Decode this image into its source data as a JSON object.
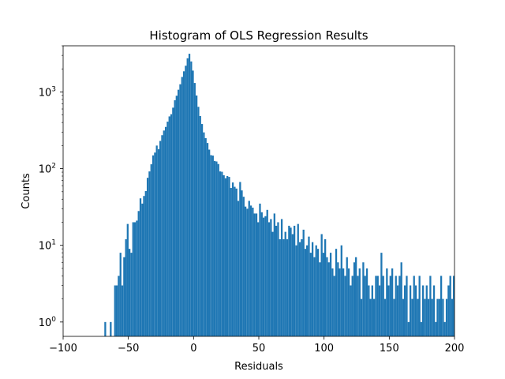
{
  "chart_data": {
    "type": "bar",
    "title": "Histogram of OLS Regression Results",
    "xlabel": "Residuals",
    "ylabel": "Counts",
    "xlim": [
      -100,
      200
    ],
    "ylim": [
      0.65,
      4000
    ],
    "yscale": "log",
    "grid": false,
    "bar_color": "#1f77b4",
    "bin_width": 1.38,
    "x_ticks": [
      {
        "value": -100,
        "label": "−100"
      },
      {
        "value": -50,
        "label": "−50"
      },
      {
        "value": 0,
        "label": "0"
      },
      {
        "value": 50,
        "label": "50"
      },
      {
        "value": 100,
        "label": "100"
      },
      {
        "value": 150,
        "label": "150"
      },
      {
        "value": 200,
        "label": "200"
      }
    ],
    "y_ticks": [
      {
        "value": 1,
        "base": "10",
        "exp": "0"
      },
      {
        "value": 10,
        "base": "10",
        "exp": "1"
      },
      {
        "value": 100,
        "base": "10",
        "exp": "2"
      },
      {
        "value": 1000,
        "base": "10",
        "exp": "3"
      }
    ],
    "bins": [
      [
        -68.4,
        1
      ],
      [
        -64.2,
        1
      ],
      [
        -60.9,
        3
      ],
      [
        -59.5,
        3
      ],
      [
        -58.1,
        4
      ],
      [
        -56.7,
        8
      ],
      [
        -55.3,
        3
      ],
      [
        -53.9,
        7
      ],
      [
        -52.5,
        12
      ],
      [
        -51.2,
        19
      ],
      [
        -49.8,
        9
      ],
      [
        -48.4,
        8
      ],
      [
        -47.0,
        20
      ],
      [
        -45.6,
        20
      ],
      [
        -44.2,
        21
      ],
      [
        -42.8,
        28
      ],
      [
        -41.4,
        41
      ],
      [
        -40.0,
        35
      ],
      [
        -38.7,
        44
      ],
      [
        -37.3,
        51
      ],
      [
        -35.9,
        76
      ],
      [
        -34.5,
        92
      ],
      [
        -33.1,
        114
      ],
      [
        -31.7,
        149
      ],
      [
        -30.3,
        162
      ],
      [
        -28.9,
        200
      ],
      [
        -27.5,
        179
      ],
      [
        -26.2,
        230
      ],
      [
        -24.8,
        273
      ],
      [
        -23.4,
        314
      ],
      [
        -22.0,
        350
      ],
      [
        -20.6,
        410
      ],
      [
        -19.2,
        480
      ],
      [
        -17.8,
        513
      ],
      [
        -16.4,
        624
      ],
      [
        -15.0,
        780
      ],
      [
        -13.7,
        893
      ],
      [
        -12.3,
        1070
      ],
      [
        -10.9,
        1260
      ],
      [
        -9.5,
        1570
      ],
      [
        -8.1,
        1860
      ],
      [
        -6.7,
        2200
      ],
      [
        -5.3,
        2750
      ],
      [
        -3.9,
        3150
      ],
      [
        -2.5,
        2500
      ],
      [
        -1.2,
        1900
      ],
      [
        0.2,
        1310
      ],
      [
        1.6,
        900
      ],
      [
        3.0,
        640
      ],
      [
        4.4,
        485
      ],
      [
        5.8,
        382
      ],
      [
        7.2,
        297
      ],
      [
        8.6,
        250
      ],
      [
        10.0,
        216
      ],
      [
        11.3,
        177
      ],
      [
        12.7,
        150
      ],
      [
        14.1,
        148
      ],
      [
        15.5,
        126
      ],
      [
        16.9,
        124
      ],
      [
        18.3,
        115
      ],
      [
        19.7,
        92
      ],
      [
        21.1,
        91
      ],
      [
        22.5,
        82
      ],
      [
        23.8,
        75
      ],
      [
        25.2,
        80
      ],
      [
        26.6,
        78
      ],
      [
        28.0,
        56
      ],
      [
        29.4,
        66
      ],
      [
        30.8,
        58
      ],
      [
        32.2,
        55
      ],
      [
        33.6,
        38
      ],
      [
        35.0,
        67
      ],
      [
        36.3,
        52
      ],
      [
        37.7,
        43
      ],
      [
        39.1,
        32
      ],
      [
        40.5,
        30
      ],
      [
        41.9,
        38
      ],
      [
        43.3,
        33
      ],
      [
        44.7,
        31
      ],
      [
        46.1,
        26
      ],
      [
        47.5,
        26
      ],
      [
        48.8,
        20
      ],
      [
        50.2,
        35
      ],
      [
        51.6,
        27
      ],
      [
        53.0,
        23
      ],
      [
        54.4,
        24
      ],
      [
        55.8,
        29
      ],
      [
        57.2,
        20
      ],
      [
        58.6,
        22
      ],
      [
        60.0,
        15
      ],
      [
        61.3,
        26
      ],
      [
        62.7,
        18
      ],
      [
        64.1,
        20
      ],
      [
        65.5,
        12
      ],
      [
        66.9,
        22
      ],
      [
        68.3,
        12
      ],
      [
        69.7,
        15
      ],
      [
        71.1,
        12
      ],
      [
        72.5,
        18
      ],
      [
        73.8,
        17
      ],
      [
        75.2,
        14
      ],
      [
        76.6,
        18
      ],
      [
        78.0,
        10
      ],
      [
        79.4,
        19
      ],
      [
        80.8,
        11
      ],
      [
        82.2,
        12
      ],
      [
        83.6,
        16
      ],
      [
        85.0,
        9
      ],
      [
        86.3,
        10
      ],
      [
        87.7,
        13
      ],
      [
        89.1,
        8
      ],
      [
        90.5,
        11
      ],
      [
        91.9,
        7
      ],
      [
        93.3,
        10
      ],
      [
        94.7,
        9
      ],
      [
        96.1,
        6
      ],
      [
        97.5,
        14
      ],
      [
        98.8,
        8
      ],
      [
        100.2,
        12
      ],
      [
        101.6,
        7
      ],
      [
        103.0,
        6
      ],
      [
        104.4,
        8
      ],
      [
        105.8,
        5
      ],
      [
        107.2,
        4
      ],
      [
        108.6,
        9
      ],
      [
        110.0,
        6
      ],
      [
        111.3,
        5
      ],
      [
        112.7,
        10
      ],
      [
        114.1,
        5
      ],
      [
        115.5,
        4
      ],
      [
        116.9,
        7
      ],
      [
        118.3,
        5
      ],
      [
        119.7,
        3
      ],
      [
        121.1,
        4
      ],
      [
        122.5,
        6
      ],
      [
        123.8,
        7
      ],
      [
        125.2,
        4
      ],
      [
        126.6,
        5
      ],
      [
        128.0,
        2
      ],
      [
        129.4,
        6
      ],
      [
        130.8,
        4
      ],
      [
        132.2,
        5
      ],
      [
        133.6,
        3
      ],
      [
        135.0,
        2
      ],
      [
        136.3,
        3
      ],
      [
        137.7,
        2
      ],
      [
        139.1,
        4
      ],
      [
        140.5,
        4
      ],
      [
        141.9,
        3
      ],
      [
        143.3,
        8
      ],
      [
        144.7,
        4
      ],
      [
        146.1,
        2
      ],
      [
        147.5,
        5
      ],
      [
        148.8,
        3
      ],
      [
        150.2,
        4
      ],
      [
        151.6,
        5
      ],
      [
        153.0,
        2
      ],
      [
        154.4,
        4
      ],
      [
        155.8,
        3
      ],
      [
        157.2,
        4
      ],
      [
        158.6,
        6
      ],
      [
        160.0,
        2
      ],
      [
        161.3,
        3
      ],
      [
        162.7,
        4
      ],
      [
        164.1,
        1
      ],
      [
        165.5,
        3
      ],
      [
        166.9,
        2
      ],
      [
        168.3,
        4
      ],
      [
        169.7,
        3
      ],
      [
        171.1,
        2
      ],
      [
        172.5,
        4
      ],
      [
        173.8,
        1
      ],
      [
        175.2,
        3
      ],
      [
        176.6,
        2
      ],
      [
        178.0,
        3
      ],
      [
        179.4,
        2
      ],
      [
        180.8,
        4
      ],
      [
        182.2,
        2
      ],
      [
        183.6,
        3
      ],
      [
        185.0,
        1
      ],
      [
        186.3,
        2
      ],
      [
        187.7,
        2
      ],
      [
        189.1,
        4
      ],
      [
        190.5,
        2
      ],
      [
        191.9,
        1
      ],
      [
        193.3,
        2
      ],
      [
        194.7,
        3
      ],
      [
        196.1,
        4
      ],
      [
        197.5,
        2
      ],
      [
        198.8,
        4
      ]
    ]
  }
}
